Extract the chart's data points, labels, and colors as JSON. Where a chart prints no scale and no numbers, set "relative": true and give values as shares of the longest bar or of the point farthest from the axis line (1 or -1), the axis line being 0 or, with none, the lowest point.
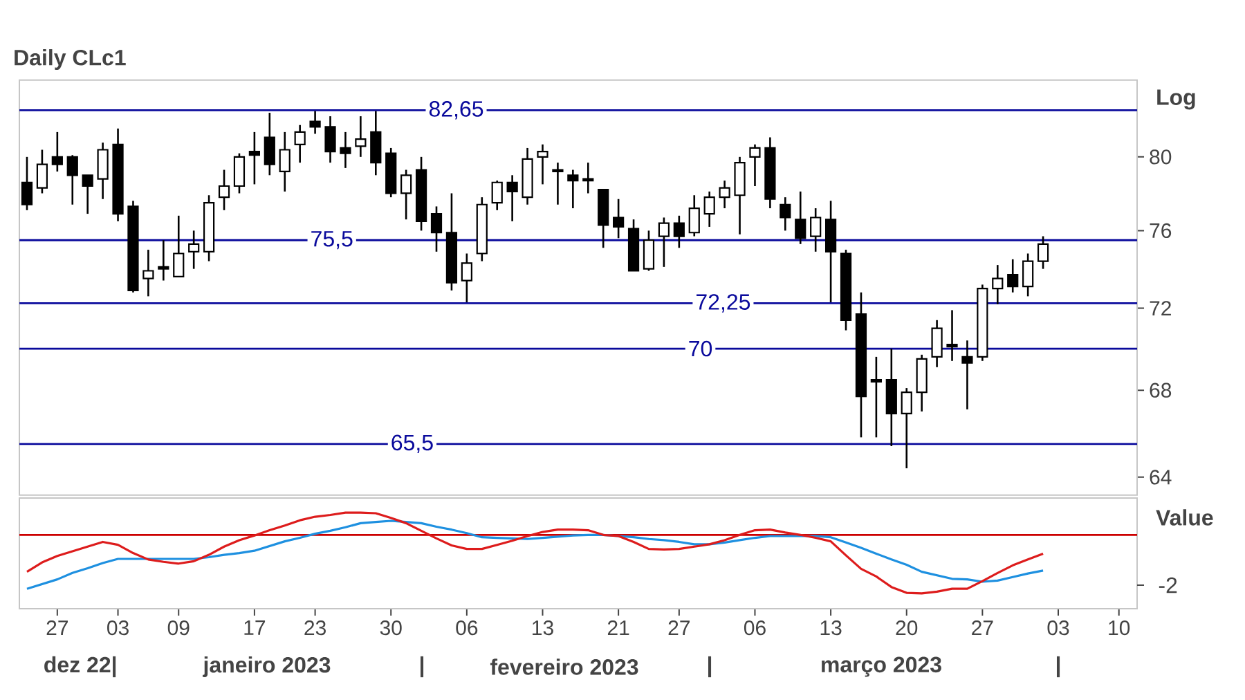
{
  "chart_data": [
    {
      "type": "candlestick",
      "title": "Daily CLc1",
      "ylabel": "Log",
      "log": true,
      "tick_labels": "y",
      "categories": [
        null,
        null,
        "27",
        null,
        null,
        null,
        "03",
        null,
        null,
        null,
        "09",
        null,
        null,
        null,
        null,
        "17",
        null,
        null,
        null,
        "23",
        null,
        null,
        null,
        null,
        "30",
        null,
        null,
        null,
        null,
        "06",
        null,
        null,
        null,
        null,
        "13",
        null,
        null,
        null,
        null,
        "21",
        null,
        null,
        null,
        "27",
        null,
        null,
        null,
        null,
        "06",
        null,
        null,
        null,
        null,
        "13",
        null,
        null,
        null,
        null,
        "20",
        null,
        null,
        null,
        null,
        "27",
        null,
        null,
        null,
        null,
        "03",
        null,
        null,
        null,
        "10"
      ],
      "ohlc": [
        [
          78.6,
          80.0,
          77.1,
          77.4
        ],
        [
          78.3,
          80.4,
          78.0,
          79.6
        ],
        [
          80.0,
          81.4,
          79.2,
          79.6
        ],
        [
          80.0,
          80.1,
          77.4,
          79.0
        ],
        [
          79.0,
          79.0,
          76.9,
          78.4
        ],
        [
          78.8,
          80.8,
          77.7,
          80.4
        ],
        [
          80.7,
          81.6,
          76.5,
          76.9
        ],
        [
          77.3,
          77.6,
          72.8,
          72.9
        ],
        [
          73.5,
          75.0,
          72.6,
          73.9
        ],
        [
          74.1,
          75.5,
          73.4,
          74.0
        ],
        [
          73.6,
          76.8,
          73.6,
          74.8
        ],
        [
          74.9,
          76.0,
          74.0,
          75.3
        ],
        [
          74.9,
          77.9,
          74.4,
          77.5
        ],
        [
          77.8,
          79.3,
          77.1,
          78.4
        ],
        [
          78.4,
          80.2,
          78.0,
          80.0
        ],
        [
          80.3,
          81.4,
          78.5,
          80.1
        ],
        [
          81.1,
          82.5,
          79.0,
          79.6
        ],
        [
          79.2,
          81.4,
          78.1,
          80.4
        ],
        [
          80.7,
          81.8,
          79.7,
          81.4
        ],
        [
          82.0,
          82.6,
          81.3,
          81.7
        ],
        [
          81.7,
          82.3,
          79.7,
          80.3
        ],
        [
          80.5,
          81.4,
          79.4,
          80.2
        ],
        [
          80.6,
          82.3,
          80.0,
          81.0
        ],
        [
          81.4,
          82.6,
          79.0,
          79.7
        ],
        [
          80.2,
          80.5,
          77.8,
          78.0
        ],
        [
          78.0,
          79.3,
          76.6,
          79.0
        ],
        [
          79.3,
          80.0,
          76.0,
          76.5
        ],
        [
          76.9,
          77.3,
          74.9,
          75.9
        ],
        [
          75.9,
          78.0,
          72.9,
          73.3
        ],
        [
          73.4,
          74.8,
          72.3,
          74.3
        ],
        [
          74.8,
          77.8,
          74.4,
          77.4
        ],
        [
          77.5,
          78.7,
          77.1,
          78.6
        ],
        [
          78.6,
          79.0,
          76.5,
          78.1
        ],
        [
          77.8,
          80.5,
          77.4,
          79.9
        ],
        [
          80.0,
          80.7,
          78.5,
          80.3
        ],
        [
          79.3,
          79.7,
          77.4,
          79.2
        ],
        [
          79.0,
          79.3,
          77.2,
          78.7
        ],
        [
          78.8,
          79.7,
          78.0,
          78.7
        ],
        [
          78.2,
          78.2,
          75.1,
          76.3
        ],
        [
          76.7,
          77.7,
          75.6,
          76.2
        ],
        [
          76.1,
          76.6,
          73.9,
          73.9
        ],
        [
          74.0,
          76.0,
          73.9,
          75.5
        ],
        [
          75.7,
          76.7,
          74.1,
          76.4
        ],
        [
          76.4,
          76.8,
          75.1,
          75.7
        ],
        [
          75.9,
          77.9,
          75.7,
          77.2
        ],
        [
          76.9,
          78.1,
          76.2,
          77.8
        ],
        [
          77.8,
          78.7,
          77.2,
          78.3
        ],
        [
          77.9,
          80.0,
          75.8,
          79.7
        ],
        [
          80.0,
          80.7,
          78.4,
          80.5
        ],
        [
          80.5,
          81.1,
          77.2,
          77.7
        ],
        [
          77.4,
          77.8,
          76.0,
          76.7
        ],
        [
          76.6,
          78.1,
          75.3,
          75.6
        ],
        [
          75.7,
          77.2,
          74.9,
          76.7
        ],
        [
          76.6,
          77.6,
          72.3,
          74.9
        ],
        [
          74.8,
          75.0,
          70.9,
          71.4
        ],
        [
          71.7,
          72.8,
          65.8,
          67.7
        ],
        [
          68.5,
          69.6,
          65.8,
          68.4
        ],
        [
          68.5,
          70.0,
          65.4,
          66.9
        ],
        [
          66.9,
          68.1,
          64.4,
          67.9
        ],
        [
          67.9,
          69.7,
          67.0,
          69.5
        ],
        [
          69.6,
          71.4,
          69.1,
          71.0
        ],
        [
          70.2,
          71.9,
          69.4,
          70.1
        ],
        [
          69.6,
          70.4,
          67.1,
          69.3
        ],
        [
          69.6,
          73.2,
          69.4,
          73.0
        ],
        [
          73.0,
          74.2,
          72.2,
          73.5
        ],
        [
          73.7,
          74.5,
          72.8,
          73.1
        ],
        [
          73.1,
          74.8,
          72.6,
          74.4
        ],
        [
          74.4,
          75.7,
          74.0,
          75.3
        ],
        null,
        null,
        null,
        null,
        null
      ],
      "ylim": [
        63.2,
        84.4
      ],
      "yticks": [
        64,
        68,
        72,
        76,
        80
      ],
      "ref_lines": [
        {
          "axis": "y",
          "value": 82.65,
          "label": "82,65",
          "color": "#0a0a9c"
        },
        {
          "axis": "y",
          "value": 75.5,
          "label": "75,5",
          "color": "#0a0a9c"
        },
        {
          "axis": "y",
          "value": 72.25,
          "label": "72,25",
          "color": "#0a0a9c"
        },
        {
          "axis": "y",
          "value": 70,
          "label": "70",
          "color": "#0a0a9c"
        },
        {
          "axis": "y",
          "value": 65.5,
          "label": "65,5",
          "color": "#0a0a9c"
        }
      ]
    },
    {
      "type": "line",
      "ylabel": "Value",
      "relative": true,
      "tick_labels": "x",
      "categories": [
        null,
        null,
        "27",
        null,
        null,
        null,
        "03",
        null,
        null,
        null,
        "09",
        null,
        null,
        null,
        null,
        "17",
        null,
        null,
        null,
        "23",
        null,
        null,
        null,
        null,
        "30",
        null,
        null,
        null,
        null,
        "06",
        null,
        null,
        null,
        null,
        "13",
        null,
        null,
        null,
        null,
        "21",
        null,
        null,
        null,
        "27",
        null,
        null,
        null,
        null,
        "06",
        null,
        null,
        null,
        null,
        "13",
        null,
        null,
        null,
        null,
        "20",
        null,
        null,
        null,
        null,
        "27",
        null,
        null,
        null,
        null,
        "03",
        null,
        null,
        null,
        "10"
      ],
      "series": [
        {
          "color": "#1e90e0",
          "values": [
            -0.92,
            -0.84,
            -0.76,
            -0.65,
            -0.57,
            -0.48,
            -0.41,
            -0.41,
            -0.41,
            -0.41,
            -0.41,
            -0.41,
            -0.38,
            -0.34,
            -0.31,
            -0.27,
            -0.19,
            -0.11,
            -0.05,
            0.02,
            0.07,
            0.13,
            0.2,
            0.22,
            0.24,
            0.22,
            0.2,
            0.14,
            0.09,
            0.03,
            -0.04,
            -0.05,
            -0.06,
            -0.07,
            -0.05,
            -0.03,
            -0.01,
            0,
            0,
            -0.02,
            -0.04,
            -0.07,
            -0.09,
            -0.12,
            -0.16,
            -0.16,
            -0.13,
            -0.09,
            -0.05,
            -0.02,
            -0.02,
            -0.02,
            -0.02,
            -0.04,
            -0.13,
            -0.22,
            -0.32,
            -0.42,
            -0.51,
            -0.63,
            -0.69,
            -0.75,
            -0.76,
            -0.8,
            -0.78,
            -0.72,
            -0.66,
            -0.61,
            null,
            null,
            null,
            null,
            null
          ]
        },
        {
          "color": "#dd1c1c",
          "values": [
            -0.63,
            -0.47,
            -0.36,
            -0.28,
            -0.2,
            -0.12,
            -0.17,
            -0.31,
            -0.42,
            -0.46,
            -0.49,
            -0.45,
            -0.34,
            -0.2,
            -0.09,
            -0.01,
            0.08,
            0.16,
            0.25,
            0.31,
            0.34,
            0.38,
            0.38,
            0.37,
            0.29,
            0.2,
            0.07,
            -0.06,
            -0.18,
            -0.24,
            -0.24,
            -0.17,
            -0.1,
            -0.02,
            0.05,
            0.09,
            0.09,
            0.08,
            0,
            -0.02,
            -0.12,
            -0.24,
            -0.25,
            -0.24,
            -0.2,
            -0.16,
            -0.09,
            0,
            0.08,
            0.09,
            0.04,
            0,
            -0.05,
            -0.11,
            -0.35,
            -0.58,
            -0.71,
            -0.89,
            -0.99,
            -1,
            -0.97,
            -0.92,
            -0.92,
            -0.79,
            -0.65,
            -0.52,
            -0.42,
            -0.32,
            null,
            null,
            null,
            null,
            null
          ]
        }
      ],
      "ref_lines": [
        {
          "axis": "y",
          "value": 0,
          "color": "#cc0000"
        }
      ],
      "annotations": [
        "dez 22|",
        "janeiro 2023",
        "|",
        "fevereiro 2023",
        "|",
        "março 2023",
        "|",
        "-2"
      ]
    }
  ]
}
